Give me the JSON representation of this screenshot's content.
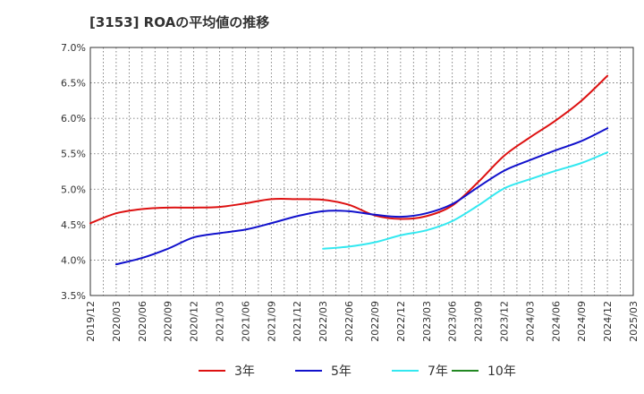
{
  "chart_data": {
    "type": "line",
    "title": "[3153]  ROAの平均値の推移",
    "xlabel": "",
    "ylabel": "",
    "ylim": [
      3.5,
      7.0
    ],
    "yticks": [
      "3.5%",
      "4.0%",
      "4.5%",
      "5.0%",
      "5.5%",
      "6.0%",
      "6.5%",
      "7.0%"
    ],
    "xticks": [
      "2019/12",
      "2020/03",
      "2020/06",
      "2020/09",
      "2020/12",
      "2021/03",
      "2021/06",
      "2021/09",
      "2021/12",
      "2022/03",
      "2022/06",
      "2022/09",
      "2022/12",
      "2023/03",
      "2023/06",
      "2023/09",
      "2023/12",
      "2024/03",
      "2024/06",
      "2024/09",
      "2024/12",
      "2025/03"
    ],
    "grid": true,
    "legend_position": "bottom",
    "series": [
      {
        "name": "3年",
        "color": "#dd1111",
        "points": [
          {
            "x": "2019/12",
            "y": 4.52
          },
          {
            "x": "2020/03",
            "y": 4.66
          },
          {
            "x": "2020/06",
            "y": 4.72
          },
          {
            "x": "2020/09",
            "y": 4.74
          },
          {
            "x": "2020/12",
            "y": 4.74
          },
          {
            "x": "2021/03",
            "y": 4.75
          },
          {
            "x": "2021/06",
            "y": 4.8
          },
          {
            "x": "2021/09",
            "y": 4.86
          },
          {
            "x": "2021/12",
            "y": 4.86
          },
          {
            "x": "2022/03",
            "y": 4.85
          },
          {
            "x": "2022/06",
            "y": 4.78
          },
          {
            "x": "2022/09",
            "y": 4.63
          },
          {
            "x": "2022/12",
            "y": 4.58
          },
          {
            "x": "2023/03",
            "y": 4.62
          },
          {
            "x": "2023/06",
            "y": 4.77
          },
          {
            "x": "2023/09",
            "y": 5.1
          },
          {
            "x": "2023/12",
            "y": 5.47
          },
          {
            "x": "2024/03",
            "y": 5.73
          },
          {
            "x": "2024/06",
            "y": 5.97
          },
          {
            "x": "2024/09",
            "y": 6.25
          },
          {
            "x": "2024/12",
            "y": 6.6
          }
        ]
      },
      {
        "name": "5年",
        "color": "#1111cc",
        "points": [
          {
            "x": "2020/03",
            "y": 3.94
          },
          {
            "x": "2020/06",
            "y": 4.03
          },
          {
            "x": "2020/09",
            "y": 4.16
          },
          {
            "x": "2020/12",
            "y": 4.32
          },
          {
            "x": "2021/03",
            "y": 4.38
          },
          {
            "x": "2021/06",
            "y": 4.43
          },
          {
            "x": "2021/09",
            "y": 4.52
          },
          {
            "x": "2021/12",
            "y": 4.62
          },
          {
            "x": "2022/03",
            "y": 4.69
          },
          {
            "x": "2022/06",
            "y": 4.69
          },
          {
            "x": "2022/09",
            "y": 4.64
          },
          {
            "x": "2022/12",
            "y": 4.61
          },
          {
            "x": "2023/03",
            "y": 4.66
          },
          {
            "x": "2023/06",
            "y": 4.79
          },
          {
            "x": "2023/09",
            "y": 5.03
          },
          {
            "x": "2023/12",
            "y": 5.26
          },
          {
            "x": "2024/03",
            "y": 5.41
          },
          {
            "x": "2024/06",
            "y": 5.55
          },
          {
            "x": "2024/09",
            "y": 5.68
          },
          {
            "x": "2024/12",
            "y": 5.86
          }
        ]
      },
      {
        "name": "7年",
        "color": "#33e8f0",
        "points": [
          {
            "x": "2022/03",
            "y": 4.16
          },
          {
            "x": "2022/06",
            "y": 4.19
          },
          {
            "x": "2022/09",
            "y": 4.25
          },
          {
            "x": "2022/12",
            "y": 4.35
          },
          {
            "x": "2023/03",
            "y": 4.42
          },
          {
            "x": "2023/06",
            "y": 4.55
          },
          {
            "x": "2023/09",
            "y": 4.77
          },
          {
            "x": "2023/12",
            "y": 5.01
          },
          {
            "x": "2024/03",
            "y": 5.14
          },
          {
            "x": "2024/06",
            "y": 5.26
          },
          {
            "x": "2024/09",
            "y": 5.37
          },
          {
            "x": "2024/12",
            "y": 5.52
          }
        ]
      },
      {
        "name": "10年",
        "color": "#228822",
        "points": []
      }
    ]
  }
}
